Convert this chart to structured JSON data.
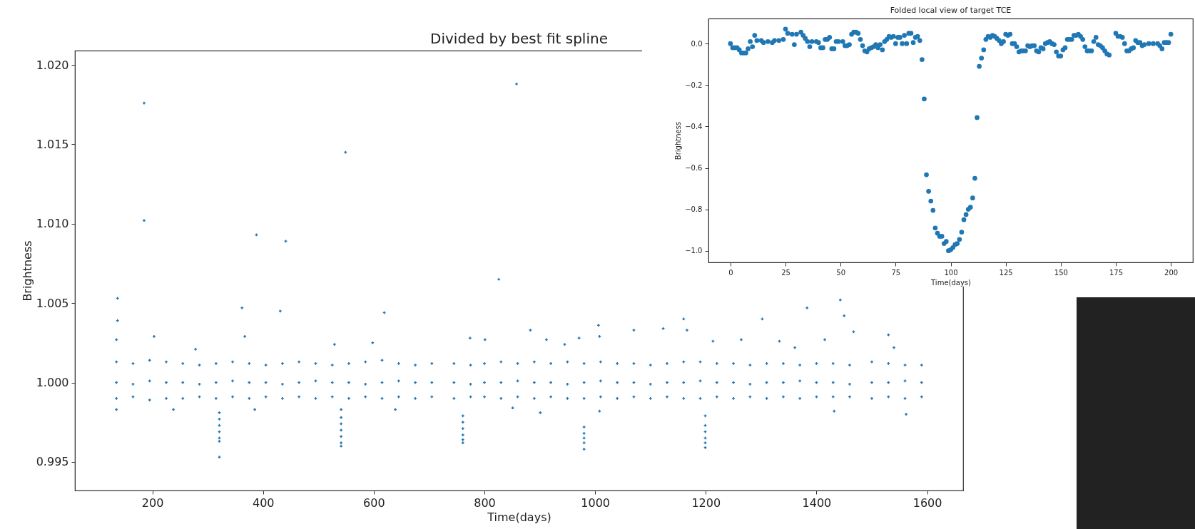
{
  "chart_data": [
    {
      "type": "scatter",
      "title": "Divided by best fit spline",
      "xlabel": "Time(days)",
      "ylabel": "Brightness",
      "xlim": [
        60,
        1665
      ],
      "ylim": [
        0.9932,
        1.0209
      ],
      "xticks": [
        200,
        400,
        600,
        800,
        1000,
        1200,
        1400,
        1600
      ],
      "yticks": [
        {
          "value": 0.995,
          "label": "0.995"
        },
        {
          "value": 1.0,
          "label": "1.000"
        },
        {
          "value": 1.005,
          "label": "1.005"
        },
        {
          "value": 1.01,
          "label": "1.010"
        },
        {
          "value": 1.015,
          "label": "1.015"
        },
        {
          "value": 1.02,
          "label": "1.020"
        }
      ],
      "marker": "cross",
      "series": [
        {
          "color": "#1f77b4",
          "x": [
            135,
            135,
            135,
            165,
            165,
            165,
            195,
            195,
            195,
            225,
            225,
            225,
            255,
            255,
            255,
            285,
            285,
            285,
            315,
            315,
            315,
            345,
            345,
            345,
            375,
            375,
            375,
            405,
            405,
            405,
            435,
            435,
            435,
            465,
            465,
            465,
            495,
            495,
            495,
            525,
            525,
            525,
            555,
            555,
            555,
            585,
            585,
            585,
            615,
            615,
            615,
            645,
            645,
            645,
            675,
            675,
            675,
            705,
            705,
            705,
            745,
            745,
            745,
            775,
            775,
            775,
            800,
            800,
            800,
            830,
            830,
            830,
            860,
            860,
            860,
            890,
            890,
            890,
            920,
            920,
            920,
            950,
            950,
            950,
            980,
            980,
            980,
            1010,
            1010,
            1010,
            1040,
            1040,
            1040,
            1070,
            1070,
            1070,
            1100,
            1100,
            1100,
            1130,
            1130,
            1130,
            1160,
            1160,
            1160,
            1190,
            1190,
            1190,
            1220,
            1220,
            1220,
            1250,
            1250,
            1250,
            1280,
            1280,
            1280,
            1310,
            1310,
            1310,
            1340,
            1340,
            1340,
            1370,
            1370,
            1370,
            1400,
            1400,
            1400,
            1430,
            1430,
            1430,
            1460,
            1460,
            1460,
            1500,
            1500,
            1500,
            1530,
            1530,
            1530,
            1560,
            1560,
            1560,
            1590,
            1590,
            1590,
            185,
            185,
            549,
            388,
            441,
            137,
            137,
            135,
            362,
            431,
            619,
            203,
            367,
            529,
            598,
            774,
            801,
            826,
            858,
            278,
            135,
            238,
            385,
            639,
            883,
            912,
            945,
            971,
            1006,
            1008,
            1070,
            1123,
            1160,
            1166,
            1213,
            1264,
            1302,
            1333,
            1361,
            1383,
            1415,
            1443,
            1450,
            1467,
            1530,
            1540,
            901,
            851,
            1008,
            1432,
            1562,
            321,
            321,
            321,
            321,
            321,
            321,
            321,
            541,
            541,
            541,
            541,
            541,
            541,
            541,
            761,
            761,
            761,
            761,
            761,
            761,
            980,
            980,
            980,
            980,
            980,
            1199,
            1199,
            1199,
            1199,
            1199,
            1199
          ],
          "values": [
            1.0013,
            1.0,
            0.999,
            1.0012,
            0.9999,
            0.9991,
            1.0014,
            1.0001,
            0.9989,
            1.0013,
            1.0,
            0.999,
            1.0012,
            1.0,
            0.999,
            1.0011,
            0.9999,
            0.9991,
            1.0012,
            1.0,
            0.999,
            1.0013,
            1.0001,
            0.9991,
            1.0012,
            1.0,
            0.999,
            1.0011,
            1.0,
            0.9991,
            1.0012,
            0.9999,
            0.999,
            1.0013,
            1.0,
            0.9991,
            1.0012,
            1.0001,
            0.999,
            1.0011,
            1.0,
            0.9991,
            1.0012,
            1.0,
            0.999,
            1.0013,
            0.9999,
            0.9991,
            1.0014,
            1.0,
            0.999,
            1.0012,
            1.0001,
            0.9991,
            1.0011,
            1.0,
            0.999,
            1.0012,
            1.0,
            0.9991,
            1.0012,
            1.0,
            0.999,
            1.0011,
            0.9999,
            0.9991,
            1.0012,
            1.0,
            0.9991,
            1.0013,
            1.0,
            0.999,
            1.0012,
            1.0001,
            0.9991,
            1.0013,
            1.0,
            0.999,
            1.0012,
            1.0,
            0.9991,
            1.0013,
            0.9999,
            0.999,
            1.0012,
            1.0,
            0.999,
            1.0013,
            1.0001,
            0.9991,
            1.0012,
            1.0,
            0.999,
            1.0012,
            1.0,
            0.9991,
            1.0011,
            0.9999,
            0.999,
            1.0012,
            1.0,
            0.9991,
            1.0013,
            1.0,
            0.999,
            1.0013,
            1.0001,
            0.999,
            1.0012,
            1.0,
            0.9991,
            1.0012,
            1.0,
            0.999,
            1.0011,
            0.9999,
            0.9991,
            1.0012,
            1.0,
            0.999,
            1.0012,
            1.0,
            0.9991,
            1.0011,
            1.0001,
            0.999,
            1.0012,
            1.0,
            0.9991,
            1.0012,
            1.0,
            0.9991,
            1.0011,
            0.9999,
            0.9991,
            1.0013,
            1.0,
            0.999,
            1.0012,
            1.0,
            0.9991,
            1.0011,
            1.0001,
            0.999,
            1.0011,
            1.0,
            0.9991,
            1.0176,
            1.0102,
            1.0145,
            1.0093,
            1.0089,
            1.0053,
            1.0039,
            1.0027,
            1.0047,
            1.0045,
            1.0044,
            1.0029,
            1.0029,
            1.0024,
            1.0025,
            1.0028,
            1.0027,
            1.0065,
            1.0188,
            1.0021,
            0.9983,
            0.9983,
            0.9983,
            0.9983,
            1.0033,
            1.0027,
            1.0024,
            1.0028,
            1.0036,
            1.0029,
            1.0033,
            1.0034,
            1.004,
            1.0033,
            1.0026,
            1.0027,
            1.004,
            1.0026,
            1.0022,
            1.0047,
            1.0027,
            1.0052,
            1.0042,
            1.0032,
            1.003,
            1.0022,
            0.9981,
            0.9984,
            0.9982,
            0.9982,
            0.998,
            0.9981,
            0.9977,
            0.9973,
            0.9969,
            0.9965,
            0.9963,
            0.9953,
            0.9983,
            0.9978,
            0.9974,
            0.997,
            0.9966,
            0.9962,
            0.996,
            0.9979,
            0.9975,
            0.9971,
            0.9967,
            0.9964,
            0.9962,
            0.9972,
            0.9968,
            0.9965,
            0.9962,
            0.9958,
            0.9979,
            0.9973,
            0.9969,
            0.9965,
            0.9962,
            0.9959
          ]
        }
      ]
    },
    {
      "type": "scatter",
      "title": "Folded local view of target TCE",
      "xlabel": "Time(days)",
      "ylabel": "Brightness",
      "xlim": [
        -10,
        210
      ],
      "ylim": [
        -1.056,
        0.121
      ],
      "xticks": [
        0,
        25,
        50,
        75,
        100,
        125,
        150,
        175,
        200
      ],
      "yticks": [
        {
          "value": -1.0,
          "label": "−1.0"
        },
        {
          "value": -0.8,
          "label": "−0.8"
        },
        {
          "value": -0.6,
          "label": "−0.6"
        },
        {
          "value": -0.4,
          "label": "−0.4"
        },
        {
          "value": -0.2,
          "label": "−0.2"
        },
        {
          "value": 0.0,
          "label": "0.0"
        }
      ],
      "marker": "circle",
      "series": [
        {
          "color": "#1f77b4",
          "x": [
            0,
            1,
            2,
            3,
            4,
            5,
            6,
            7,
            8,
            9,
            10,
            11,
            12,
            14,
            15,
            17,
            19,
            20,
            22,
            24,
            25,
            26,
            28,
            29,
            30,
            32,
            33,
            34,
            35,
            36,
            37,
            39,
            40,
            41,
            42,
            43,
            44,
            45,
            46,
            47,
            48,
            49,
            51,
            52,
            53,
            54,
            55,
            56,
            57,
            58,
            59,
            60,
            61,
            62,
            63,
            64,
            65,
            66,
            67,
            68,
            69,
            70,
            71,
            72,
            73,
            74,
            75,
            76,
            77,
            78,
            79,
            80,
            81,
            82,
            83,
            84,
            85,
            86,
            87,
            88,
            89,
            90,
            91,
            92,
            93,
            94,
            95,
            96,
            97,
            98,
            99,
            100,
            101,
            102,
            103,
            104,
            105,
            106,
            107,
            108,
            109,
            110,
            111,
            112,
            113,
            114,
            115,
            116,
            117,
            118,
            119,
            120,
            121,
            122,
            123,
            124,
            125,
            126,
            127,
            128,
            129,
            130,
            131,
            132,
            133,
            134,
            135,
            136,
            137,
            138,
            139,
            140,
            141,
            142,
            143,
            144,
            145,
            146,
            147,
            148,
            149,
            150,
            151,
            152,
            153,
            154,
            155,
            156,
            157,
            158,
            159,
            160,
            161,
            162,
            163,
            164,
            165,
            166,
            167,
            168,
            169,
            170,
            171,
            172,
            175,
            176,
            177,
            178,
            179,
            180,
            181,
            182,
            183,
            184,
            185,
            186,
            187,
            188,
            190,
            192,
            194,
            195,
            196,
            197,
            198,
            199,
            200
          ],
          "values": [
            0.0,
            -0.02,
            -0.02,
            -0.02,
            -0.03,
            -0.045,
            -0.045,
            -0.045,
            -0.025,
            0.01,
            -0.015,
            0.04,
            0.015,
            0.015,
            0.005,
            0.01,
            0.005,
            0.015,
            0.015,
            0.02,
            0.07,
            0.05,
            0.045,
            -0.005,
            0.045,
            0.055,
            0.04,
            0.025,
            0.01,
            -0.015,
            0.01,
            0.01,
            0.005,
            -0.02,
            -0.02,
            0.02,
            0.02,
            0.03,
            -0.025,
            -0.025,
            0.01,
            0.01,
            0.01,
            -0.01,
            -0.01,
            -0.005,
            0.045,
            0.055,
            0.055,
            0.05,
            0.02,
            -0.01,
            -0.035,
            -0.04,
            -0.025,
            -0.02,
            -0.015,
            -0.005,
            -0.02,
            -0.005,
            -0.03,
            0.01,
            0.02,
            0.035,
            0.03,
            0.035,
            0.0,
            0.03,
            0.03,
            0.0,
            0.04,
            0.0,
            0.05,
            0.05,
            0.005,
            0.03,
            0.035,
            0.015,
            -0.077,
            -0.267,
            -0.633,
            -0.713,
            -0.76,
            -0.805,
            -0.89,
            -0.915,
            -0.93,
            -0.93,
            -0.965,
            -0.955,
            -1.0,
            -0.995,
            -0.985,
            -0.97,
            -0.965,
            -0.945,
            -0.91,
            -0.85,
            -0.825,
            -0.8,
            -0.79,
            -0.745,
            -0.65,
            -0.357,
            -0.11,
            -0.07,
            -0.03,
            0.02,
            0.035,
            0.03,
            0.04,
            0.035,
            0.025,
            0.015,
            0.0,
            0.01,
            0.045,
            0.04,
            0.045,
            0.0,
            0.0,
            -0.015,
            -0.04,
            -0.035,
            -0.035,
            -0.035,
            -0.01,
            -0.015,
            -0.01,
            -0.01,
            -0.035,
            -0.04,
            -0.02,
            -0.025,
            0.0,
            0.005,
            0.01,
            0.0,
            -0.005,
            -0.04,
            -0.06,
            -0.06,
            -0.03,
            -0.02,
            0.02,
            0.02,
            0.02,
            0.04,
            0.04,
            0.045,
            0.035,
            0.02,
            -0.015,
            -0.035,
            -0.035,
            -0.035,
            0.01,
            0.03,
            -0.005,
            -0.01,
            -0.02,
            -0.035,
            -0.05,
            -0.055,
            0.05,
            0.035,
            0.035,
            0.03,
            0.0,
            -0.035,
            -0.035,
            -0.025,
            -0.02,
            0.015,
            0.005,
            0.005,
            -0.01,
            -0.005,
            0.0,
            0.0,
            0.0,
            -0.01,
            -0.025,
            0.005,
            0.005,
            0.005,
            0.045
          ]
        }
      ]
    }
  ]
}
